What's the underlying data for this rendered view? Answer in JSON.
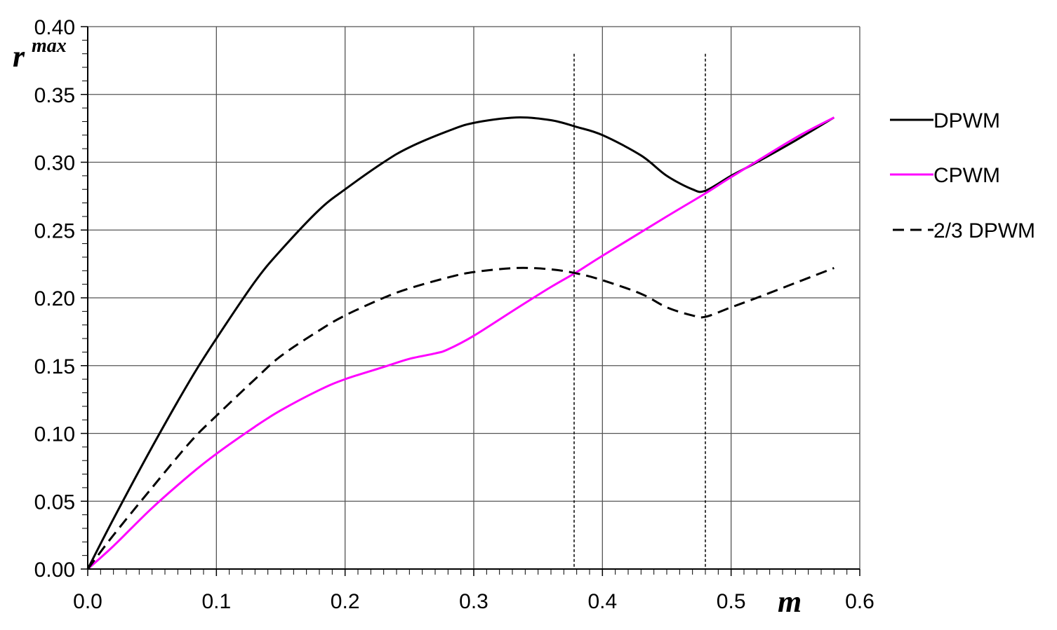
{
  "chart_data": {
    "type": "line",
    "xlabel": "m",
    "ylabel": "r",
    "ylabel_superscript": "max",
    "xlim": [
      0.0,
      0.6
    ],
    "ylim": [
      0.0,
      0.4
    ],
    "x_ticks": [
      "0.0",
      "0.1",
      "0.2",
      "0.3",
      "0.4",
      "0.5",
      "0.6"
    ],
    "y_ticks": [
      "0.00",
      "0.05",
      "0.10",
      "0.15",
      "0.20",
      "0.25",
      "0.30",
      "0.35",
      "0.40"
    ],
    "x_tick_values": [
      0.0,
      0.1,
      0.2,
      0.3,
      0.4,
      0.5,
      0.6
    ],
    "y_tick_values": [
      0.0,
      0.05,
      0.1,
      0.15,
      0.2,
      0.25,
      0.3,
      0.35,
      0.4
    ],
    "grid": true,
    "legend_position": "right",
    "reference_lines_x": [
      0.378,
      0.48
    ],
    "reference_lines_ytop": 0.38,
    "series": [
      {
        "name": "DPWM",
        "color": "#000000",
        "style": "solid",
        "x": [
          0.0,
          0.02,
          0.05,
          0.08,
          0.1,
          0.13,
          0.15,
          0.18,
          0.2,
          0.23,
          0.25,
          0.28,
          0.3,
          0.333,
          0.36,
          0.38,
          0.4,
          0.43,
          0.45,
          0.47,
          0.48,
          0.5,
          0.52,
          0.55,
          0.58
        ],
        "y": [
          0.0,
          0.037,
          0.09,
          0.14,
          0.17,
          0.212,
          0.235,
          0.265,
          0.28,
          0.3,
          0.311,
          0.323,
          0.329,
          0.333,
          0.331,
          0.326,
          0.32,
          0.305,
          0.29,
          0.28,
          0.279,
          0.29,
          0.3,
          0.316,
          0.333
        ]
      },
      {
        "name": "CPWM",
        "color": "#ff00ff",
        "style": "solid",
        "x": [
          0.0,
          0.02,
          0.05,
          0.08,
          0.1,
          0.13,
          0.15,
          0.18,
          0.2,
          0.23,
          0.25,
          0.27,
          0.28,
          0.3,
          0.333,
          0.36,
          0.38,
          0.4,
          0.45,
          0.48,
          0.5,
          0.55,
          0.58
        ],
        "y": [
          0.0,
          0.017,
          0.045,
          0.07,
          0.085,
          0.105,
          0.117,
          0.132,
          0.14,
          0.149,
          0.155,
          0.159,
          0.162,
          0.172,
          0.192,
          0.208,
          0.219,
          0.231,
          0.26,
          0.277,
          0.289,
          0.318,
          0.333
        ]
      },
      {
        "name": "2/3 DPWM",
        "color": "#000000",
        "style": "dashed",
        "x": [
          0.0,
          0.02,
          0.05,
          0.08,
          0.1,
          0.13,
          0.15,
          0.18,
          0.2,
          0.23,
          0.25,
          0.28,
          0.3,
          0.333,
          0.36,
          0.38,
          0.4,
          0.43,
          0.45,
          0.47,
          0.48,
          0.5,
          0.52,
          0.55,
          0.58
        ],
        "y": [
          0.0,
          0.025,
          0.06,
          0.094,
          0.113,
          0.14,
          0.157,
          0.176,
          0.187,
          0.2,
          0.207,
          0.215,
          0.219,
          0.222,
          0.221,
          0.218,
          0.213,
          0.203,
          0.193,
          0.187,
          0.186,
          0.193,
          0.2,
          0.211,
          0.222
        ]
      }
    ]
  }
}
